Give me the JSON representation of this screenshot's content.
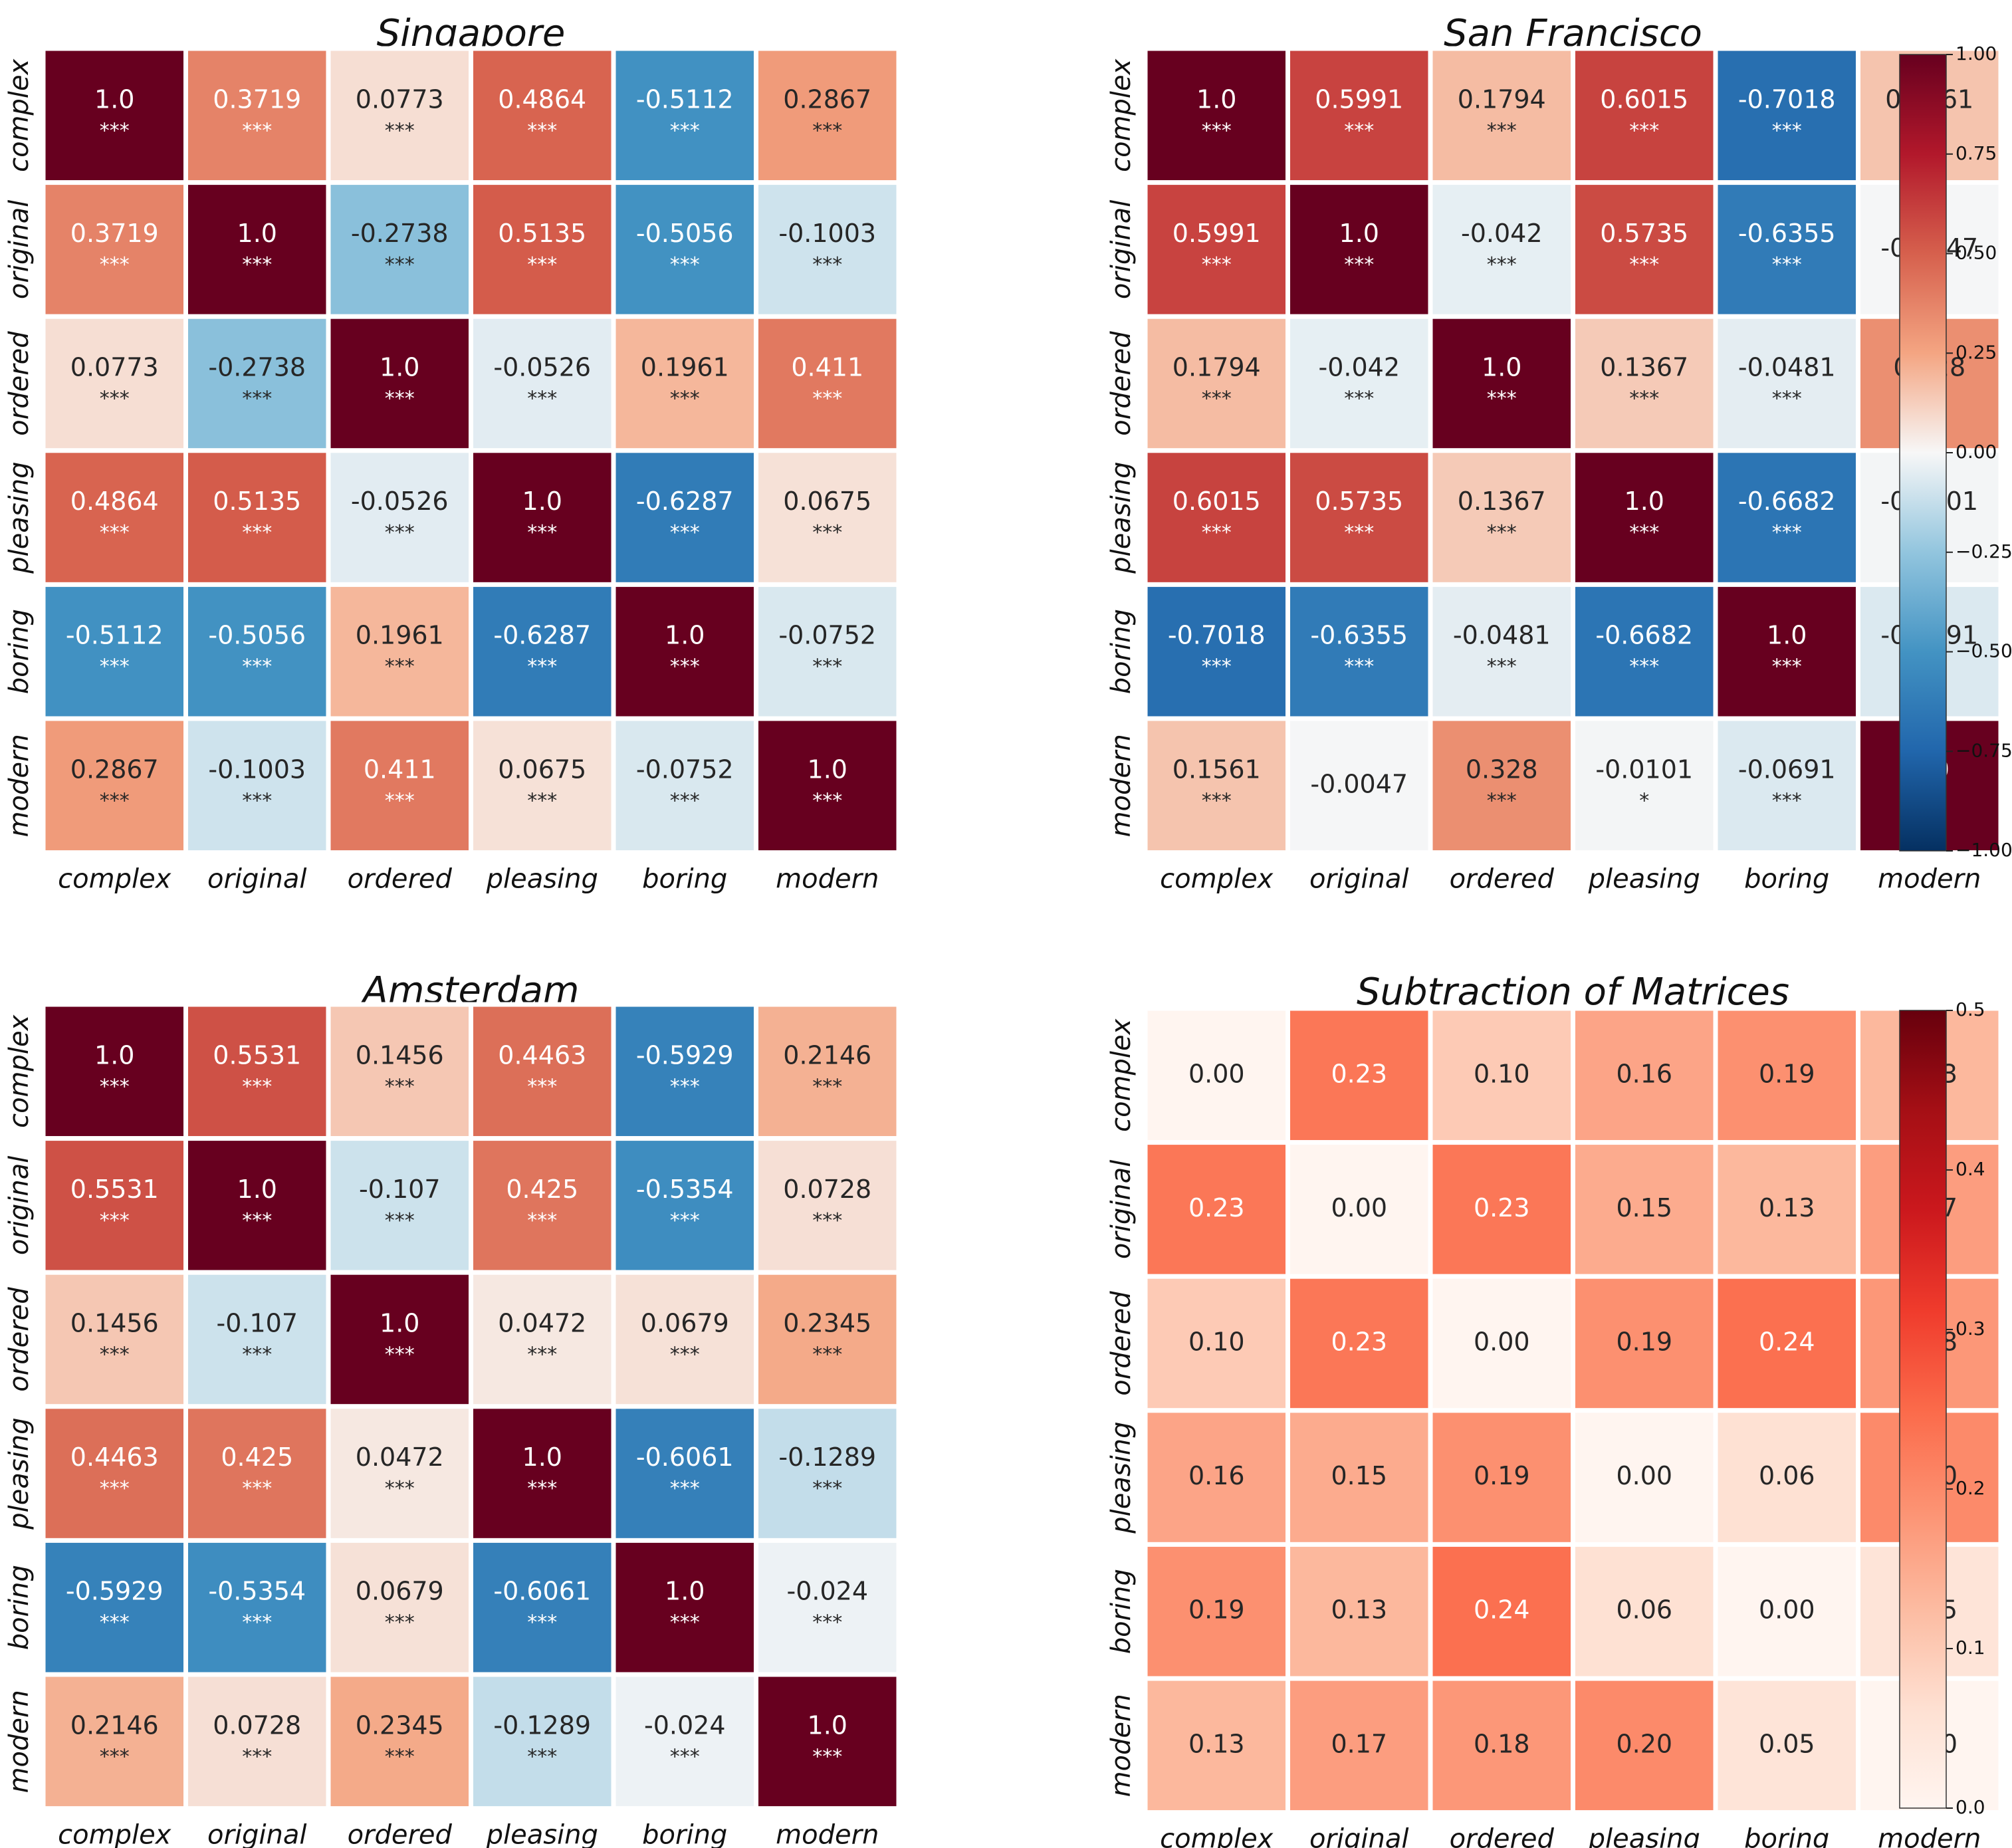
{
  "chart_data": [
    {
      "type": "heatmap",
      "title": "Singapore",
      "categories": [
        "complex",
        "original",
        "ordered",
        "pleasing",
        "boring",
        "modern"
      ],
      "values": [
        [
          "1.0",
          "0.3719",
          "0.0773",
          "0.4864",
          "-0.5112",
          "0.2867"
        ],
        [
          "0.3719",
          "1.0",
          "-0.2738",
          "0.5135",
          "-0.5056",
          "-0.1003"
        ],
        [
          "0.0773",
          "-0.2738",
          "1.0",
          "-0.0526",
          "0.1961",
          "0.411"
        ],
        [
          "0.4864",
          "0.5135",
          "-0.0526",
          "1.0",
          "-0.6287",
          "0.0675"
        ],
        [
          "-0.5112",
          "-0.5056",
          "0.1961",
          "-0.6287",
          "1.0",
          "-0.0752"
        ],
        [
          "0.2867",
          "-0.1003",
          "0.411",
          "0.0675",
          "-0.0752",
          "1.0"
        ]
      ],
      "significance": [
        [
          "***",
          "***",
          "***",
          "***",
          "***",
          "***"
        ],
        [
          "***",
          "***",
          "***",
          "***",
          "***",
          "***"
        ],
        [
          "***",
          "***",
          "***",
          "***",
          "***",
          "***"
        ],
        [
          "***",
          "***",
          "***",
          "***",
          "***",
          "***"
        ],
        [
          "***",
          "***",
          "***",
          "***",
          "***",
          "***"
        ],
        [
          "***",
          "***",
          "***",
          "***",
          "***",
          "***"
        ]
      ],
      "colormap": "RdBu_r",
      "vmin": -1,
      "vmax": 1,
      "colorbar": false
    },
    {
      "type": "heatmap",
      "title": "San Francisco",
      "categories": [
        "complex",
        "original",
        "ordered",
        "pleasing",
        "boring",
        "modern"
      ],
      "values": [
        [
          "1.0",
          "0.5991",
          "0.1794",
          "0.6015",
          "-0.7018",
          "0.1561"
        ],
        [
          "0.5991",
          "1.0",
          "-0.042",
          "0.5735",
          "-0.6355",
          "-0.0047"
        ],
        [
          "0.1794",
          "-0.042",
          "1.0",
          "0.1367",
          "-0.0481",
          "0.328"
        ],
        [
          "0.6015",
          "0.5735",
          "0.1367",
          "1.0",
          "-0.6682",
          "-0.0101"
        ],
        [
          "-0.7018",
          "-0.6355",
          "-0.0481",
          "-0.6682",
          "1.0",
          "-0.0691"
        ],
        [
          "0.1561",
          "-0.0047",
          "0.328",
          "-0.0101",
          "-0.0691",
          "1.0"
        ]
      ],
      "significance": [
        [
          "***",
          "***",
          "***",
          "***",
          "***",
          "***"
        ],
        [
          "***",
          "***",
          "***",
          "***",
          "***",
          ""
        ],
        [
          "***",
          "***",
          "***",
          "***",
          "***",
          "***"
        ],
        [
          "***",
          "***",
          "***",
          "***",
          "***",
          "*"
        ],
        [
          "***",
          "***",
          "***",
          "***",
          "***",
          "***"
        ],
        [
          "***",
          "",
          "***",
          "*",
          "***",
          "***"
        ]
      ],
      "colormap": "RdBu_r",
      "vmin": -1,
      "vmax": 1,
      "colorbar": true,
      "colorbar_ticks": [
        "1.00",
        "0.75",
        "0.50",
        "0.25",
        "0.00",
        "−0.25",
        "−0.50",
        "−0.75",
        "−1.00"
      ]
    },
    {
      "type": "heatmap",
      "title": "Amsterdam",
      "categories": [
        "complex",
        "original",
        "ordered",
        "pleasing",
        "boring",
        "modern"
      ],
      "values": [
        [
          "1.0",
          "0.5531",
          "0.1456",
          "0.4463",
          "-0.5929",
          "0.2146"
        ],
        [
          "0.5531",
          "1.0",
          "-0.107",
          "0.425",
          "-0.5354",
          "0.0728"
        ],
        [
          "0.1456",
          "-0.107",
          "1.0",
          "0.0472",
          "0.0679",
          "0.2345"
        ],
        [
          "0.4463",
          "0.425",
          "0.0472",
          "1.0",
          "-0.6061",
          "-0.1289"
        ],
        [
          "-0.5929",
          "-0.5354",
          "0.0679",
          "-0.6061",
          "1.0",
          "-0.024"
        ],
        [
          "0.2146",
          "0.0728",
          "0.2345",
          "-0.1289",
          "-0.024",
          "1.0"
        ]
      ],
      "significance": [
        [
          "***",
          "***",
          "***",
          "***",
          "***",
          "***"
        ],
        [
          "***",
          "***",
          "***",
          "***",
          "***",
          "***"
        ],
        [
          "***",
          "***",
          "***",
          "***",
          "***",
          "***"
        ],
        [
          "***",
          "***",
          "***",
          "***",
          "***",
          "***"
        ],
        [
          "***",
          "***",
          "***",
          "***",
          "***",
          "***"
        ],
        [
          "***",
          "***",
          "***",
          "***",
          "***",
          "***"
        ]
      ],
      "colormap": "RdBu_r",
      "vmin": -1,
      "vmax": 1,
      "colorbar": false
    },
    {
      "type": "heatmap",
      "title": "Subtraction of Matrices",
      "categories": [
        "complex",
        "original",
        "ordered",
        "pleasing",
        "boring",
        "modern"
      ],
      "values": [
        [
          "0.00",
          "0.23",
          "0.10",
          "0.16",
          "0.19",
          "0.13"
        ],
        [
          "0.23",
          "0.00",
          "0.23",
          "0.15",
          "0.13",
          "0.17"
        ],
        [
          "0.10",
          "0.23",
          "0.00",
          "0.19",
          "0.24",
          "0.18"
        ],
        [
          "0.16",
          "0.15",
          "0.19",
          "0.00",
          "0.06",
          "0.20"
        ],
        [
          "0.19",
          "0.13",
          "0.24",
          "0.06",
          "0.00",
          "0.05"
        ],
        [
          "0.13",
          "0.17",
          "0.18",
          "0.20",
          "0.05",
          "0.00"
        ]
      ],
      "colormap": "Reds",
      "vmin": 0,
      "vmax": 0.5,
      "colorbar": true,
      "colorbar_ticks": [
        "0.5",
        "0.4",
        "0.3",
        "0.2",
        "0.1",
        "0.0"
      ]
    }
  ]
}
